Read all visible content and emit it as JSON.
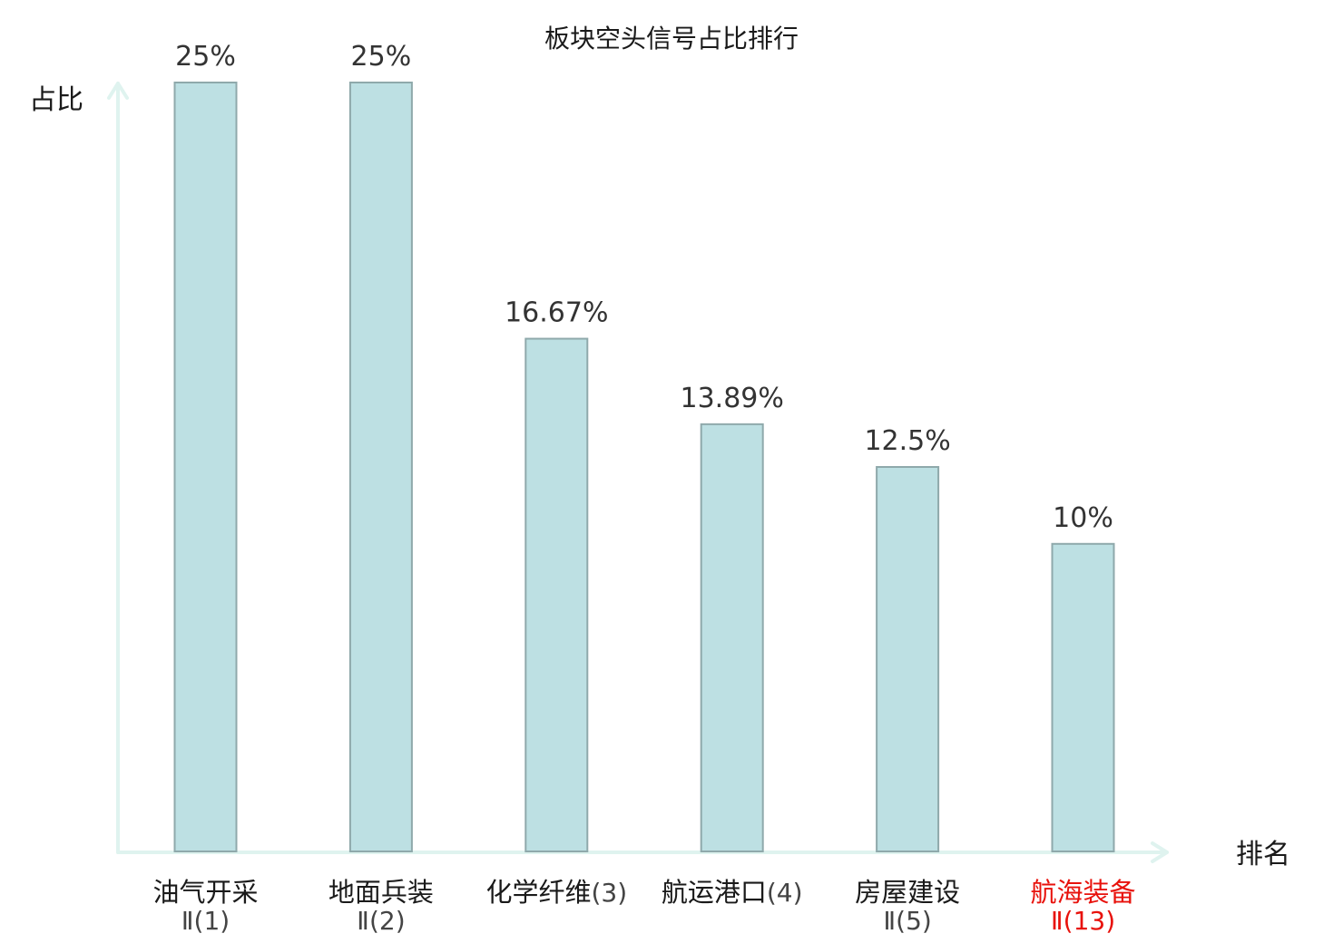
{
  "chart_data": {
    "type": "bar",
    "title": "板块空头信号占比排行",
    "ylabel": "占比",
    "xlabel": "排名",
    "ylim": [
      0,
      25
    ],
    "grid": false,
    "categories": [
      {
        "name": "油气开采",
        "rank": "Ⅱ(1)",
        "value": 25,
        "label": "25%",
        "highlight": false
      },
      {
        "name": "地面兵装",
        "rank": "Ⅱ(2)",
        "value": 25,
        "label": "25%",
        "highlight": false
      },
      {
        "name": "化学纤维",
        "rank": "(3)",
        "value": 16.67,
        "label": "16.67%",
        "highlight": false
      },
      {
        "name": "航运港口",
        "rank": "(4)",
        "value": 13.89,
        "label": "13.89%",
        "highlight": false
      },
      {
        "name": "房屋建设",
        "rank": "Ⅱ(5)",
        "value": 12.5,
        "label": "12.5%",
        "highlight": false
      },
      {
        "name": "航海装备",
        "rank": "Ⅱ(13)",
        "value": 10,
        "label": "10%",
        "highlight": true
      }
    ],
    "colors": {
      "bar_fill": "#bde0e3",
      "bar_stroke": "#8fa9ab",
      "axis": "#dff3ef",
      "highlight": "#e8120c"
    }
  }
}
